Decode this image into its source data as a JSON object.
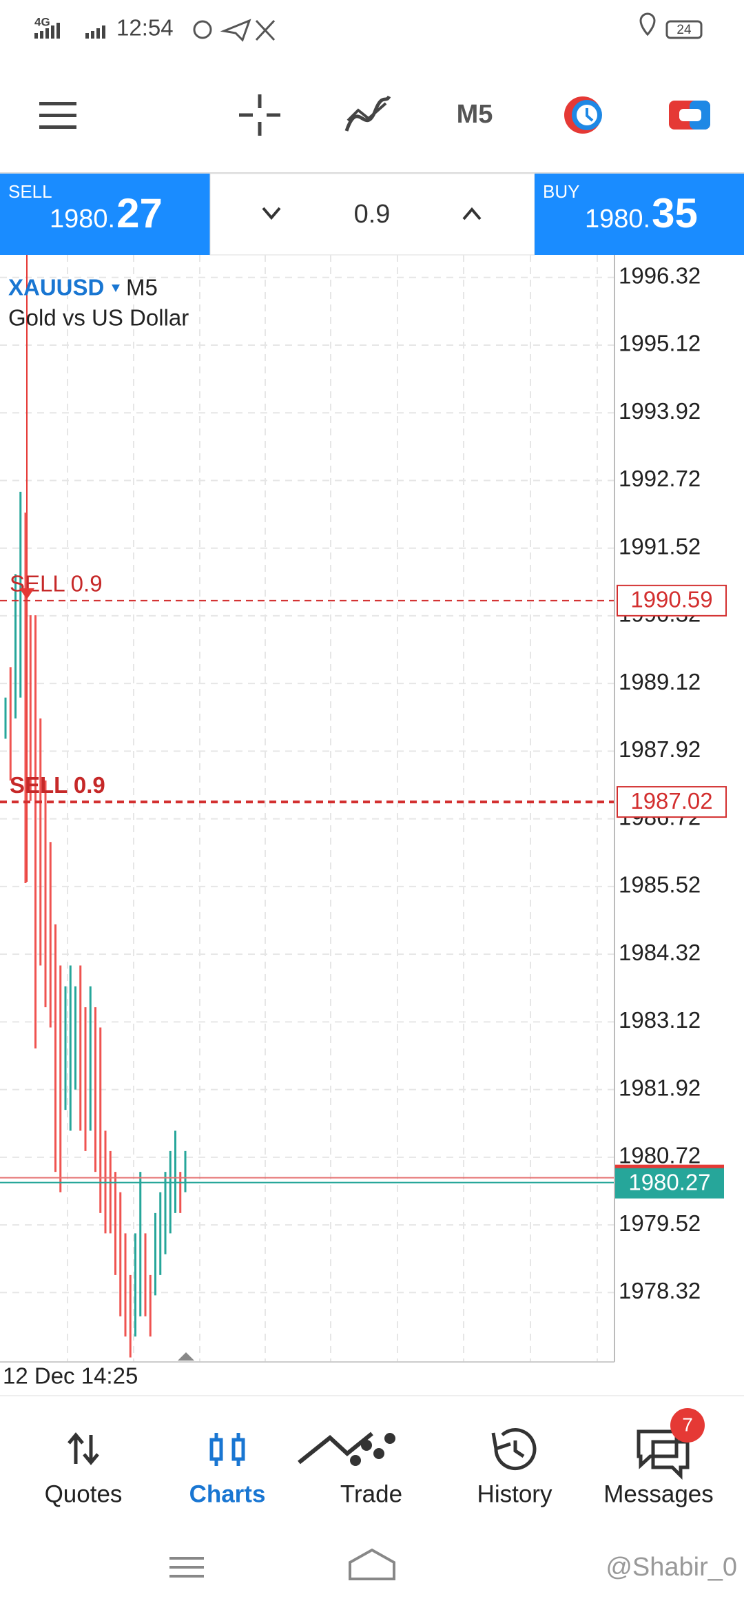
{
  "status_bar": {
    "network": "4G",
    "time": "12:54",
    "battery": "24"
  },
  "toolbar": {
    "timeframe": "M5"
  },
  "trade_panel": {
    "sell_label": "SELL",
    "sell_price_main": "1980.",
    "sell_price_big": "27",
    "volume": "0.9",
    "buy_label": "BUY",
    "buy_price_main": "1980.",
    "buy_price_big": "35"
  },
  "chart": {
    "type": "ohlc",
    "symbol": "XAUUSD",
    "timeframe": "M5",
    "description": "Gold vs US Dollar",
    "time_label": "12 Dec 14:25",
    "ylim": [
      1977.09,
      1996.72
    ],
    "yticks": [
      1996.32,
      1995.12,
      1993.92,
      1992.72,
      1991.52,
      1990.32,
      1989.12,
      1987.92,
      1986.72,
      1985.52,
      1984.32,
      1983.12,
      1981.92,
      1980.72,
      1979.52,
      1978.32
    ],
    "grid": true,
    "up_color": "#26a69a",
    "down_color": "#ef5350",
    "high": [
      1988.87,
      1989.41,
      1991.06,
      1992.52,
      1992.15,
      1990.33,
      1990.33,
      1988.5,
      1987.4,
      1986.31,
      1984.85,
      1984.12,
      1983.75,
      1984.12,
      1983.75,
      1984.12,
      1983.38,
      1983.75,
      1983.38,
      1983.02,
      1981.19,
      1980.83,
      1980.46,
      1980.1,
      1979.37,
      1978.63,
      1979.37,
      1980.46,
      1979.37,
      1978.63,
      1979.73,
      1980.1,
      1980.46,
      1980.83,
      1981.19,
      1980.46,
      1980.83
    ],
    "low": [
      1988.14,
      1987.4,
      1988.5,
      1988.87,
      1985.58,
      1987.04,
      1982.65,
      1984.12,
      1983.38,
      1983.02,
      1980.46,
      1980.1,
      1981.56,
      1981.19,
      1981.92,
      1981.19,
      1980.83,
      1981.19,
      1980.46,
      1979.73,
      1979.37,
      1979.37,
      1978.63,
      1977.9,
      1977.54,
      1977.17,
      1977.54,
      1977.9,
      1977.9,
      1977.54,
      1978.27,
      1978.63,
      1979.0,
      1979.37,
      1979.73,
      1979.73,
      1980.1
    ],
    "orders": [
      {
        "label": "SELL 0.9",
        "price": 1990.59
      },
      {
        "label": "SELL 0.9",
        "price": 1987.02
      }
    ],
    "bid": 1980.27
  },
  "nav": {
    "items": [
      "Quotes",
      "Charts",
      "Trade",
      "History",
      "Messages"
    ],
    "badge": "7"
  },
  "watermark": "@Shabir_0"
}
